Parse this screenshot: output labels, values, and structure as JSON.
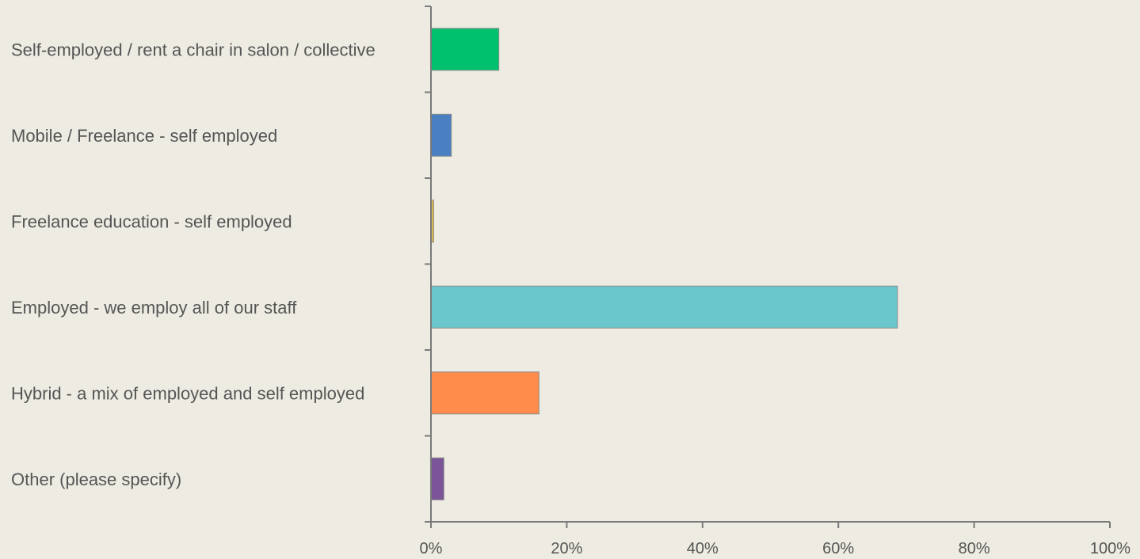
{
  "chart_data": {
    "type": "bar",
    "orientation": "horizontal",
    "title": "",
    "xlabel": "",
    "ylabel": "",
    "categories": [
      "Self-employed / rent a chair in salon / collective",
      "Mobile / Freelance - self employed",
      "Freelance education - self employed",
      "Employed - we employ all of our staff",
      "Hybrid - a mix of employed and self employed",
      "Other (please specify)"
    ],
    "values": [
      10,
      3,
      0.4,
      68.7,
      15.9,
      1.9
    ],
    "colors": [
      "#00c16e",
      "#4a7fc1",
      "#d9b84a",
      "#6ac7cc",
      "#ff8c4a",
      "#7b5597"
    ],
    "xlim": [
      0,
      100
    ],
    "xticks": [
      "0%",
      "20%",
      "40%",
      "60%",
      "80%",
      "100%"
    ],
    "grid": false,
    "legend": "none"
  }
}
